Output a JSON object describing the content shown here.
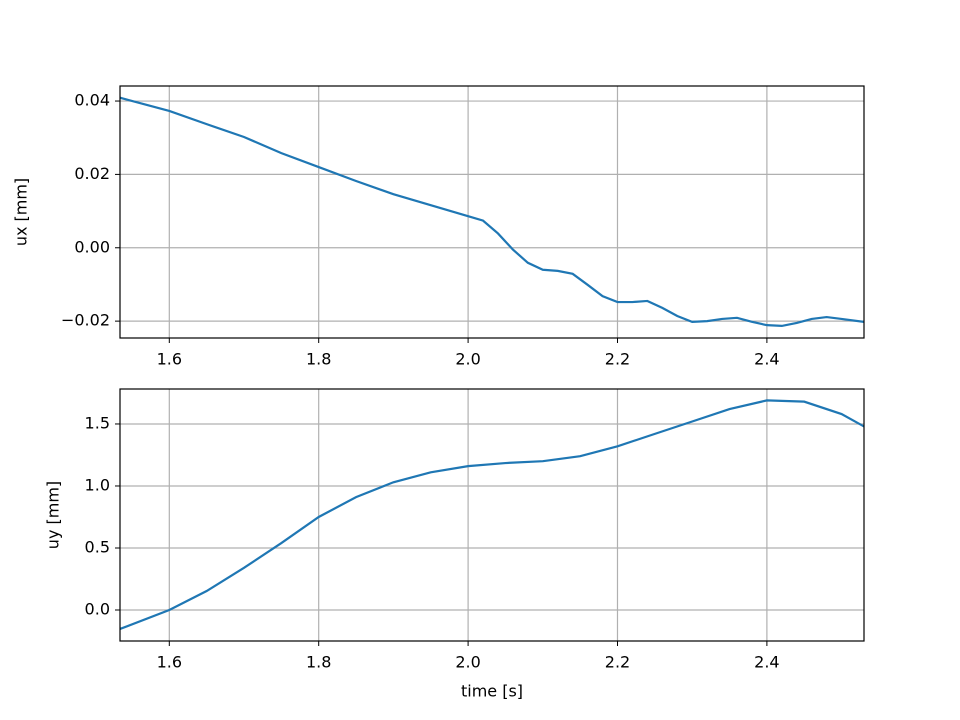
{
  "chart_data": [
    {
      "type": "line",
      "ylabel": "ux [mm]",
      "x": [
        1.534,
        1.6,
        1.65,
        1.7,
        1.75,
        1.8,
        1.85,
        1.9,
        1.95,
        2.0,
        2.02,
        2.04,
        2.06,
        2.08,
        2.1,
        2.12,
        2.14,
        2.16,
        2.18,
        2.2,
        2.22,
        2.24,
        2.26,
        2.28,
        2.3,
        2.32,
        2.34,
        2.36,
        2.38,
        2.4,
        2.42,
        2.44,
        2.46,
        2.48,
        2.5,
        2.53
      ],
      "series": [
        {
          "color": "#1f77b4",
          "values": [
            0.0409,
            0.0373,
            0.0337,
            0.0302,
            0.0258,
            0.022,
            0.0182,
            0.0146,
            0.0116,
            0.0086,
            0.0074,
            0.0039,
            -0.0005,
            -0.0041,
            -0.006,
            -0.0063,
            -0.0071,
            -0.0101,
            -0.0132,
            -0.0148,
            -0.0148,
            -0.0145,
            -0.0164,
            -0.0186,
            -0.0202,
            -0.02,
            -0.0194,
            -0.0191,
            -0.0202,
            -0.0211,
            -0.0213,
            -0.0205,
            -0.0194,
            -0.0189,
            -0.0194,
            -0.0202
          ]
        }
      ],
      "xlim": [
        1.534,
        2.53
      ],
      "xticks": [
        1.6,
        1.8,
        {
          "value": 2.0,
          "label": "2.0"
        },
        2.2,
        2.4
      ],
      "ylim": [
        -0.0246,
        0.0441
      ],
      "yticks": [
        {
          "value": -0.02,
          "label": "−0.02"
        },
        {
          "value": 0,
          "label": "0.00"
        },
        0.02,
        0.04
      ],
      "grid": true
    },
    {
      "type": "line",
      "ylabel": "uy [mm]",
      "xlabel": "time [s]",
      "x": [
        1.534,
        1.6,
        1.65,
        1.7,
        1.75,
        1.8,
        1.85,
        1.9,
        1.95,
        2.0,
        2.05,
        2.1,
        2.15,
        2.2,
        2.25,
        2.3,
        2.35,
        2.4,
        2.45,
        2.5,
        2.53
      ],
      "series": [
        {
          "color": "#1f77b4",
          "values": [
            -0.153,
            0.0,
            0.153,
            0.34,
            0.54,
            0.75,
            0.91,
            1.03,
            1.11,
            1.16,
            1.185,
            1.2,
            1.24,
            1.32,
            1.42,
            1.52,
            1.62,
            1.69,
            1.68,
            1.58,
            1.48
          ]
        }
      ],
      "xlim": [
        1.534,
        2.53
      ],
      "xticks": [
        1.6,
        1.8,
        {
          "value": 2.0,
          "label": "2.0"
        },
        2.2,
        2.4
      ],
      "ylim": [
        -0.25,
        1.782
      ],
      "yticks": [
        {
          "value": 0,
          "label": "0.0"
        },
        0.5,
        {
          "value": 1,
          "label": "1.0"
        },
        1.5
      ],
      "grid": true
    }
  ]
}
